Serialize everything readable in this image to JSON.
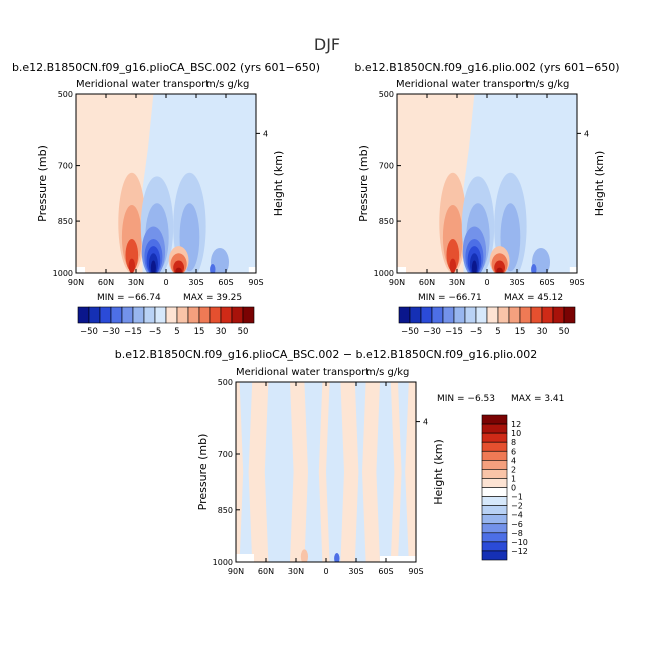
{
  "page_title": "DJF",
  "colors": {
    "warm_light": "#fde5d4",
    "cool_light": "#d6e8fb",
    "warm_scale": [
      "#fde3d3",
      "#f9c4a8",
      "#f4a07e",
      "#ef7a55",
      "#e5502f",
      "#cf2a17",
      "#a8120a",
      "#7a0303"
    ],
    "cool_scale": [
      "#d6e8fb",
      "#b9d2f5",
      "#98b6ef",
      "#7392ea",
      "#4d6fe6",
      "#2b4bd8",
      "#1530b5",
      "#0a168c"
    ]
  },
  "chart_data": [
    {
      "type": "contour",
      "title": "b.e12.B1850CN.f09_g16.plioCA_BSC.002 (yrs 601−650)",
      "subtitle": "Meridional water transport",
      "units": "m/s g/kg",
      "xlabel": "",
      "ylabel": "Pressure (mb)",
      "y2label": "Height (km)",
      "x_ticks": [
        "90N",
        "60N",
        "30N",
        "0",
        "30S",
        "60S",
        "90S"
      ],
      "y_ticks": [
        "500",
        "700",
        "850",
        "1000"
      ],
      "y2_ticks": [
        "4"
      ],
      "min_label": "MIN = −66.74",
      "max_label": "MAX =   39.25",
      "min": -66.74,
      "max": 39.25
    },
    {
      "type": "contour",
      "title": "b.e12.B1850CN.f09_g16.plio.002 (yrs 601−650)",
      "subtitle": "Meridional water transport",
      "units": "m/s g/kg",
      "xlabel": "",
      "ylabel": "Pressure (mb)",
      "y2label": "Height (km)",
      "x_ticks": [
        "90N",
        "60N",
        "30N",
        "0",
        "30S",
        "60S",
        "90S"
      ],
      "y_ticks": [
        "500",
        "700",
        "850",
        "1000"
      ],
      "y2_ticks": [
        "4"
      ],
      "min_label": "MIN = −66.71",
      "max_label": "MAX =   45.12",
      "min": -66.71,
      "max": 45.12
    },
    {
      "type": "contour",
      "title": "b.e12.B1850CN.f09_g16.plioCA_BSC.002 − b.e12.B1850CN.f09_g16.plio.002",
      "subtitle": "Meridional water transport",
      "units": "m/s g/kg",
      "xlabel": "",
      "ylabel": "Pressure (mb)",
      "y2label": "Height (km)",
      "x_ticks": [
        "90N",
        "60N",
        "30N",
        "0",
        "30S",
        "60S",
        "90S"
      ],
      "y_ticks": [
        "500",
        "700",
        "850",
        "1000"
      ],
      "y2_ticks": [
        "4"
      ],
      "min_label": "MIN =   −6.53",
      "max_label": "MAX =    3.41",
      "min": -6.53,
      "max": 3.41
    }
  ],
  "colorbar_top": {
    "labels": [
      "−50",
      "−30",
      "−15",
      "−5",
      "5",
      "15",
      "30",
      "50"
    ],
    "colors": [
      "#0a168c",
      "#1530b5",
      "#2b4bd8",
      "#4d6fe6",
      "#7392ea",
      "#98b6ef",
      "#b9d2f5",
      "#d6e8fb",
      "#fde3d3",
      "#f9c4a8",
      "#f4a07e",
      "#ef7a55",
      "#e5502f",
      "#cf2a17",
      "#a8120a",
      "#7a0303"
    ]
  },
  "colorbar_diff": {
    "labels": [
      "12",
      "10",
      "8",
      "6",
      "4",
      "2",
      "1",
      "0",
      "−1",
      "−2",
      "−4",
      "−6",
      "−8",
      "−10",
      "−12"
    ],
    "colors": [
      "#7a0303",
      "#a8120a",
      "#cf2a17",
      "#e5502f",
      "#ef7a55",
      "#f4a07e",
      "#f9c4a8",
      "#fde3d3",
      "#ffffff",
      "#d6e8fb",
      "#b9d2f5",
      "#98b6ef",
      "#7392ea",
      "#4d6fe6",
      "#2b4bd8",
      "#1530b5"
    ]
  }
}
